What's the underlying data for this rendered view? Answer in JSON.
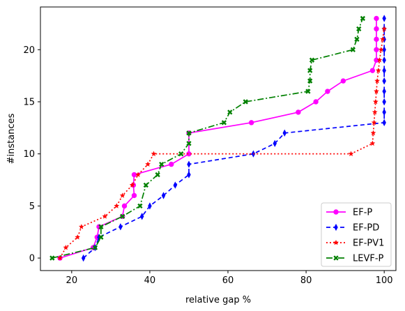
{
  "chart_data": {
    "type": "line",
    "title": "",
    "xlabel": "relative gap %",
    "ylabel": "#instances",
    "xlim": [
      12,
      103
    ],
    "ylim": [
      -1.2,
      24.1
    ],
    "xticks": [
      20,
      40,
      60,
      80,
      100
    ],
    "yticks": [
      0,
      5,
      10,
      15,
      20
    ],
    "grid": false,
    "legend_position": "lower-right",
    "series": [
      {
        "name": "EF-P",
        "color": "#ff00ff",
        "dash": "",
        "marker": "circle",
        "x": [
          17,
          25.5,
          26.5,
          27,
          27,
          33,
          33.5,
          36,
          35.8,
          36,
          45.5,
          50,
          50,
          66,
          78,
          82.5,
          85.5,
          89.5,
          97,
          98,
          98,
          98,
          98,
          98
        ],
        "y": [
          0,
          1,
          2,
          3,
          3,
          4,
          5,
          6,
          7,
          8,
          9,
          10,
          12,
          13,
          14,
          15,
          16,
          17,
          18,
          19,
          20,
          21,
          22,
          23
        ]
      },
      {
        "name": "EF-PD",
        "color": "#0000ff",
        "dash": "6,4",
        "marker": "diamond",
        "x": [
          23,
          26,
          27,
          32.5,
          38,
          40,
          43.5,
          46.5,
          50,
          50,
          66.5,
          72,
          74.5,
          100,
          100,
          100,
          100,
          100,
          100,
          100,
          100,
          100,
          100,
          100
        ],
        "y": [
          0,
          1,
          2,
          3,
          4,
          5,
          6,
          7,
          8,
          9,
          10,
          11,
          12,
          13,
          14,
          15,
          16,
          17,
          18,
          19,
          20,
          21,
          22,
          23
        ]
      },
      {
        "name": "EF-PV1",
        "color": "#ff0000",
        "dash": "2,3",
        "marker": "star",
        "x": [
          17,
          18.5,
          21.5,
          22.5,
          28.5,
          31.5,
          33,
          35.5,
          37,
          39.5,
          41,
          91.5,
          97,
          97.2,
          97.4,
          97.6,
          97.8,
          98,
          98.2,
          98.5,
          98.8,
          99.2,
          99.6,
          100
        ],
        "y": [
          0,
          1,
          2,
          3,
          4,
          5,
          6,
          7,
          8,
          9,
          10,
          10,
          11,
          12,
          13,
          14,
          15,
          16,
          17,
          18,
          19,
          20,
          21,
          22
        ]
      },
      {
        "name": "LEVF-P",
        "color": "#008000",
        "dash": "9,3,2,3",
        "marker": "x",
        "x": [
          15,
          26,
          27.5,
          27.5,
          33,
          37.5,
          39,
          42,
          43,
          48,
          50,
          50,
          59,
          60.5,
          64.5,
          80.5,
          81,
          81,
          81.5,
          92,
          93,
          93.5,
          94.5
        ],
        "y": [
          0,
          1,
          2,
          3,
          4,
          5,
          7,
          8,
          9,
          10,
          11,
          12,
          13,
          14,
          15,
          16,
          17,
          18,
          19,
          20,
          21,
          22,
          23
        ]
      }
    ]
  }
}
